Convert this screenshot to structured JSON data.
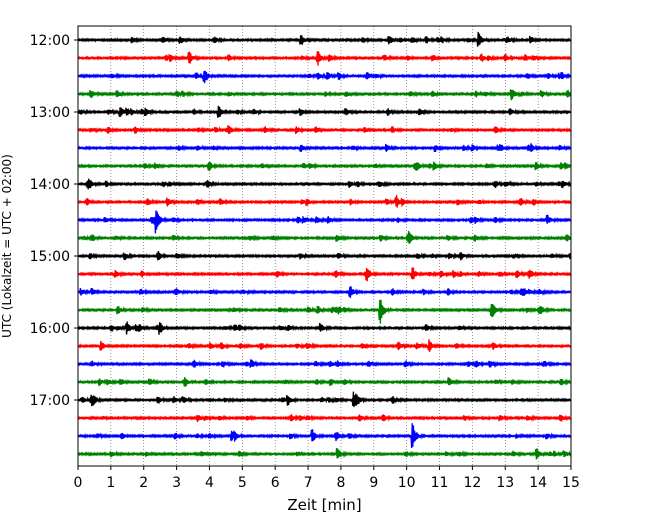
{
  "chart_data": {
    "type": "line",
    "subtype": "helicorder",
    "xlabel": "Zeit  [min]",
    "ylabel": "UTC (Lokalzeit = UTC + 02:00)",
    "xlim": [
      0,
      15
    ],
    "xticks": [
      0,
      1,
      2,
      3,
      4,
      5,
      6,
      7,
      8,
      9,
      10,
      11,
      12,
      13,
      14,
      15
    ],
    "y_tick_labels": [
      "12:00",
      "13:00",
      "14:00",
      "15:00",
      "16:00",
      "17:00"
    ],
    "rows_per_hour": 4,
    "row_start_times": [
      "12:00",
      "12:15",
      "12:30",
      "12:45",
      "13:00",
      "13:15",
      "13:30",
      "13:45",
      "14:00",
      "14:15",
      "14:30",
      "14:45",
      "15:00",
      "15:15",
      "15:30",
      "15:45",
      "16:00",
      "16:15",
      "16:30",
      "16:45",
      "17:00",
      "17:15",
      "17:30",
      "17:45"
    ],
    "trace_colors": [
      "#000000",
      "#ff0000",
      "#0000ff",
      "#008000"
    ],
    "grid": "vertical dotted at each minute",
    "events": [
      {
        "row": 0,
        "x": 12.2,
        "amp": 0.55
      },
      {
        "row": 0,
        "x": 6.8,
        "amp": 0.45
      },
      {
        "row": 1,
        "x": 3.4,
        "amp": 0.45
      },
      {
        "row": 1,
        "x": 7.3,
        "amp": 0.4
      },
      {
        "row": 3,
        "x": 13.2,
        "amp": 0.5
      },
      {
        "row": 4,
        "x": 4.3,
        "amp": 0.45
      },
      {
        "row": 4,
        "x": 1.3,
        "amp": 0.35
      },
      {
        "row": 7,
        "x": 4.0,
        "amp": 0.35
      },
      {
        "row": 9,
        "x": 9.7,
        "amp": 0.45
      },
      {
        "row": 10,
        "x": 2.4,
        "amp": 0.5
      },
      {
        "row": 10,
        "x": 14.3,
        "amp": 0.35
      },
      {
        "row": 13,
        "x": 10.2,
        "amp": 0.45
      },
      {
        "row": 13,
        "x": 8.8,
        "amp": 0.45
      },
      {
        "row": 14,
        "x": 8.3,
        "amp": 0.5
      },
      {
        "row": 15,
        "x": 9.2,
        "amp": 1.1
      },
      {
        "row": 15,
        "x": 12.6,
        "amp": 0.4
      },
      {
        "row": 16,
        "x": 1.5,
        "amp": 0.45
      },
      {
        "row": 16,
        "x": 2.5,
        "amp": 0.35
      },
      {
        "row": 17,
        "x": 10.7,
        "amp": 0.45
      },
      {
        "row": 19,
        "x": 11.3,
        "amp": 0.3
      },
      {
        "row": 20,
        "x": 8.4,
        "amp": 0.65
      },
      {
        "row": 20,
        "x": 6.4,
        "amp": 0.35
      },
      {
        "row": 22,
        "x": 10.2,
        "amp": 0.9
      },
      {
        "row": 22,
        "x": 4.7,
        "amp": 0.35
      },
      {
        "row": 23,
        "x": 7.9,
        "amp": 0.45
      }
    ]
  }
}
